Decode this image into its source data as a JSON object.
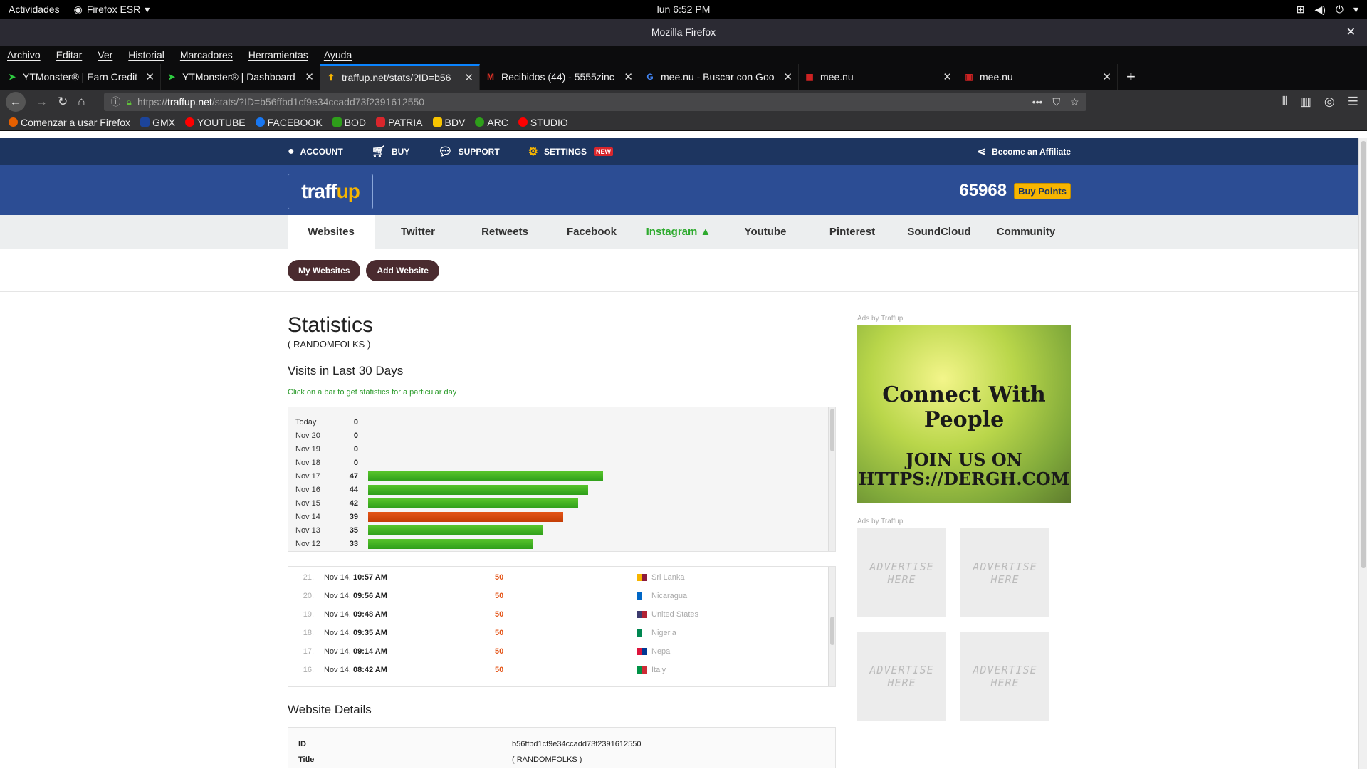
{
  "system": {
    "activities": "Actividades",
    "app": "Firefox ESR",
    "clock": "lun  6:52 PM"
  },
  "window": {
    "title": "Mozilla Firefox"
  },
  "menu": [
    "Archivo",
    "Editar",
    "Ver",
    "Historial",
    "Marcadores",
    "Herramientas",
    "Ayuda"
  ],
  "tabs": [
    {
      "title": "YTMonster® | Earn Credit",
      "icon": "ytmonster-icon",
      "color": "#2ecc40",
      "active": false
    },
    {
      "title": "YTMonster® | Dashboard",
      "icon": "ytmonster-icon",
      "color": "#2ecc40",
      "active": false
    },
    {
      "title": "traffup.net/stats/?ID=b56",
      "icon": "traffup-icon",
      "color": "#f7b500",
      "active": true
    },
    {
      "title": "Recibidos (44) - 5555zinc",
      "icon": "gmail-icon",
      "color": "#d93025",
      "active": false
    },
    {
      "title": "mee.nu - Buscar con Goo",
      "icon": "google-icon",
      "color": "#4285f4",
      "active": false
    },
    {
      "title": "mee.nu",
      "icon": "meenu-icon",
      "color": "#cc2222",
      "active": false
    },
    {
      "title": "mee.nu",
      "icon": "meenu-icon",
      "color": "#cc2222",
      "active": false
    }
  ],
  "url": {
    "prefix": "https://",
    "host": "traffup.net",
    "path": "/stats/?ID=b56ffbd1cf9e34ccadd73f2391612550"
  },
  "bookmarks": [
    {
      "label": "Comenzar a usar Firefox",
      "color": "#e66000"
    },
    {
      "label": "GMX",
      "color": "#1c449b"
    },
    {
      "label": "YOUTUBE",
      "color": "#ff0000"
    },
    {
      "label": "FACEBOOK",
      "color": "#1877f2"
    },
    {
      "label": "BOD",
      "color": "#2e9e1a"
    },
    {
      "label": "PATRIA",
      "color": "#d9262c"
    },
    {
      "label": "BDV",
      "color": "#f7c400"
    },
    {
      "label": "ARC",
      "color": "#2e9e1a"
    },
    {
      "label": "STUDIO",
      "color": "#ff0000"
    }
  ],
  "site": {
    "topnav": {
      "account": "ACCOUNT",
      "buy": "BUY",
      "support": "SUPPORT",
      "settings": "SETTINGS",
      "new_badge": "NEW",
      "affiliate": "Become an Affiliate"
    },
    "logo": {
      "a": "traff",
      "b": "up"
    },
    "points": "65968",
    "buy_points": "Buy Points",
    "subnav": [
      "Websites",
      "Twitter",
      "Retweets",
      "Facebook",
      "Instagram ▲",
      "Youtube",
      "Pinterest",
      "SoundCloud",
      "Community"
    ],
    "buttons": {
      "my_websites": "My Websites",
      "add_website": "Add Website"
    },
    "stats": {
      "title": "Statistics",
      "subtitle": "( RANDOMFOLKS )",
      "visits_heading": "Visits in Last 30 Days",
      "hint": "Click on a bar to get statistics for a particular day"
    },
    "visits": [
      {
        "n": "21.",
        "date": "Nov 14, ",
        "time": "10:57 AM",
        "points": "50",
        "country": "Sri Lanka",
        "flag": [
          "#f7b500",
          "#8d1b3d"
        ]
      },
      {
        "n": "20.",
        "date": "Nov 14, ",
        "time": "09:56 AM",
        "points": "50",
        "country": "Nicaragua",
        "flag": [
          "#0067c6",
          "#ffffff"
        ]
      },
      {
        "n": "19.",
        "date": "Nov 14, ",
        "time": "09:48 AM",
        "points": "50",
        "country": "United States",
        "flag": [
          "#3c3b6e",
          "#b22234"
        ]
      },
      {
        "n": "18.",
        "date": "Nov 14, ",
        "time": "09:35 AM",
        "points": "50",
        "country": "Nigeria",
        "flag": [
          "#008751",
          "#ffffff"
        ]
      },
      {
        "n": "17.",
        "date": "Nov 14, ",
        "time": "09:14 AM",
        "points": "50",
        "country": "Nepal",
        "flag": [
          "#dc143c",
          "#003893"
        ]
      },
      {
        "n": "16.",
        "date": "Nov 14, ",
        "time": "08:42 AM",
        "points": "50",
        "country": "Italy",
        "flag": [
          "#009246",
          "#ce2b37"
        ]
      }
    ],
    "details": {
      "heading": "Website Details",
      "rows": [
        {
          "k": "ID",
          "v": "b56ffbd1cf9e34ccadd73f2391612550"
        },
        {
          "k": "Title",
          "v": "( RANDOMFOLKS )"
        }
      ]
    },
    "ads": {
      "label": "Ads by Traffup",
      "banner_line1": "Connect With People",
      "banner_line2": "JOIN US ON HTTPS://DERGH.COM",
      "box_text": "ADVERTISE HERE"
    }
  },
  "chart_data": {
    "type": "bar",
    "orientation": "horizontal",
    "categories": [
      "Today",
      "Nov 20",
      "Nov 19",
      "Nov 18",
      "Nov 17",
      "Nov 16",
      "Nov 15",
      "Nov 14",
      "Nov 13",
      "Nov 12"
    ],
    "values": [
      0,
      0,
      0,
      0,
      47,
      44,
      42,
      39,
      35,
      33
    ],
    "highlighted": "Nov 14",
    "colors": {
      "bar": "#3fb223",
      "selected": "#d9480c"
    }
  }
}
